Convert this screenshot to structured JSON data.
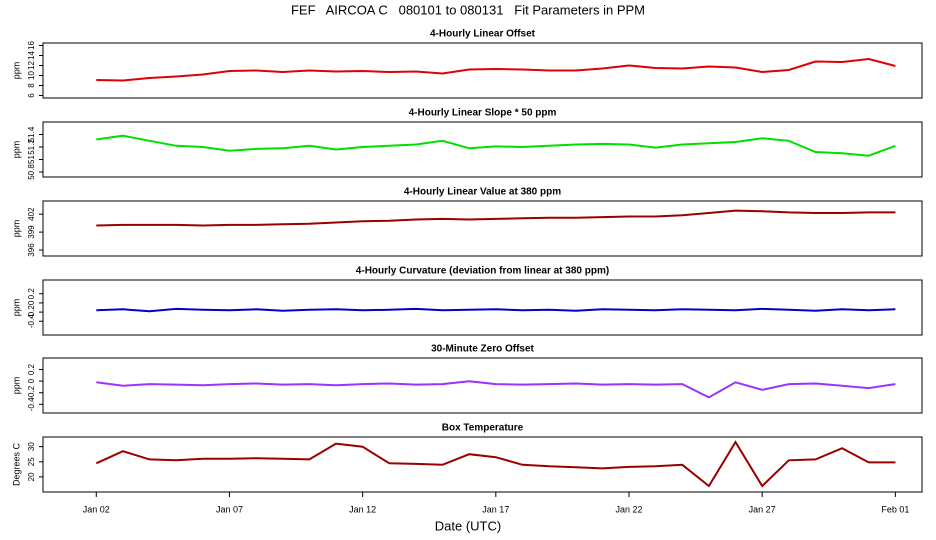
{
  "title": "FEF   AIRCOA C   080101 to 080131   Fit Parameters in PPM",
  "chart_data": [
    {
      "type": "line",
      "title": "4-Hourly Linear Offset",
      "ylabel": "ppm",
      "color": "#e00000",
      "x": [
        "Jan 02",
        "Jan 03",
        "Jan 04",
        "Jan 05",
        "Jan 06",
        "Jan 07",
        "Jan 08",
        "Jan 09",
        "Jan 10",
        "Jan 11",
        "Jan 12",
        "Jan 13",
        "Jan 14",
        "Jan 15",
        "Jan 16",
        "Jan 17",
        "Jan 18",
        "Jan 19",
        "Jan 20",
        "Jan 21",
        "Jan 22",
        "Jan 23",
        "Jan 24",
        "Jan 25",
        "Jan 26",
        "Jan 27",
        "Jan 28",
        "Jan 29",
        "Jan 30",
        "Jan 31",
        "Feb 01"
      ],
      "xlim": [
        "Dec 31",
        "Feb 02"
      ],
      "values": [
        9.1,
        9.0,
        9.5,
        9.8,
        10.2,
        10.9,
        11.0,
        10.7,
        11.0,
        10.8,
        10.9,
        10.7,
        10.8,
        10.4,
        11.2,
        11.3,
        11.2,
        11.0,
        11.0,
        11.4,
        12.0,
        11.5,
        11.4,
        11.8,
        11.6,
        10.7,
        11.1,
        12.8,
        12.7,
        13.3,
        11.9
      ],
      "ylim": [
        5.5,
        16.5
      ],
      "yticks": [
        6,
        8,
        10,
        12,
        14,
        16
      ]
    },
    {
      "type": "line",
      "title": "4-Hourly Linear Slope * 50 ppm",
      "ylabel": "ppm",
      "color": "#00e000",
      "x": [
        "Jan 02",
        "Jan 03",
        "Jan 04",
        "Jan 05",
        "Jan 06",
        "Jan 07",
        "Jan 08",
        "Jan 09",
        "Jan 10",
        "Jan 11",
        "Jan 12",
        "Jan 13",
        "Jan 14",
        "Jan 15",
        "Jan 16",
        "Jan 17",
        "Jan 18",
        "Jan 19",
        "Jan 20",
        "Jan 21",
        "Jan 22",
        "Jan 23",
        "Jan 24",
        "Jan 25",
        "Jan 26",
        "Jan 27",
        "Jan 28",
        "Jan 29",
        "Jan 30",
        "Jan 31",
        "Feb 01"
      ],
      "xlim": [
        "Dec 31",
        "Feb 02"
      ],
      "values": [
        51.32,
        51.38,
        51.3,
        51.22,
        51.2,
        51.14,
        51.17,
        51.18,
        51.22,
        51.16,
        51.2,
        51.22,
        51.24,
        51.3,
        51.18,
        51.21,
        51.2,
        51.22,
        51.24,
        51.25,
        51.24,
        51.19,
        51.24,
        51.26,
        51.28,
        51.34,
        51.3,
        51.12,
        51.1,
        51.06,
        51.22
      ],
      "ylim": [
        50.72,
        51.6
      ],
      "yticks": [
        {
          "value": 50.8,
          "label": "50.8"
        },
        {
          "value": 51.0,
          "label": "51"
        },
        51.2,
        51.4
      ]
    },
    {
      "type": "line",
      "title": "4-Hourly Linear Value at 380 ppm",
      "ylabel": "ppm",
      "color": "#990000",
      "x": [
        "Jan 02",
        "Jan 03",
        "Jan 04",
        "Jan 05",
        "Jan 06",
        "Jan 07",
        "Jan 08",
        "Jan 09",
        "Jan 10",
        "Jan 11",
        "Jan 12",
        "Jan 13",
        "Jan 14",
        "Jan 15",
        "Jan 16",
        "Jan 17",
        "Jan 18",
        "Jan 19",
        "Jan 20",
        "Jan 21",
        "Jan 22",
        "Jan 23",
        "Jan 24",
        "Jan 25",
        "Jan 26",
        "Jan 27",
        "Jan 28",
        "Jan 29",
        "Jan 30",
        "Jan 31",
        "Feb 01"
      ],
      "xlim": [
        "Dec 31",
        "Feb 02"
      ],
      "values": [
        400.1,
        400.2,
        400.2,
        400.2,
        400.1,
        400.2,
        400.2,
        400.3,
        400.4,
        400.6,
        400.8,
        400.9,
        401.1,
        401.2,
        401.1,
        401.2,
        401.3,
        401.4,
        401.4,
        401.5,
        401.6,
        401.6,
        401.8,
        402.2,
        402.6,
        402.5,
        402.3,
        402.2,
        402.2,
        402.3,
        402.3
      ],
      "ylim": [
        395,
        404.2
      ],
      "yticks": [
        396,
        399,
        402
      ]
    },
    {
      "type": "line",
      "title": "4-Hourly Curvature (deviation from linear at 380 ppm)",
      "ylabel": "ppm",
      "color": "#0000cc",
      "x": [
        "Jan 02",
        "Jan 03",
        "Jan 04",
        "Jan 05",
        "Jan 06",
        "Jan 07",
        "Jan 08",
        "Jan 09",
        "Jan 10",
        "Jan 11",
        "Jan 12",
        "Jan 13",
        "Jan 14",
        "Jan 15",
        "Jan 16",
        "Jan 17",
        "Jan 18",
        "Jan 19",
        "Jan 20",
        "Jan 21",
        "Jan 22",
        "Jan 23",
        "Jan 24",
        "Jan 25",
        "Jan 26",
        "Jan 27",
        "Jan 28",
        "Jan 29",
        "Jan 30",
        "Jan 31",
        "Feb 01"
      ],
      "xlim": [
        "Dec 31",
        "Feb 02"
      ],
      "values": [
        -0.16,
        -0.14,
        -0.18,
        -0.13,
        -0.15,
        -0.16,
        -0.14,
        -0.17,
        -0.15,
        -0.14,
        -0.16,
        -0.15,
        -0.13,
        -0.16,
        -0.15,
        -0.14,
        -0.16,
        -0.15,
        -0.17,
        -0.14,
        -0.15,
        -0.16,
        -0.14,
        -0.15,
        -0.16,
        -0.13,
        -0.15,
        -0.17,
        -0.14,
        -0.16,
        -0.14
      ],
      "ylim": [
        -0.7,
        0.5
      ],
      "yticks": [
        -0.4,
        -0.2,
        0,
        0.2
      ]
    },
    {
      "type": "line",
      "title": "30-Minute Zero Offset",
      "ylabel": "ppm",
      "color": "#9933ff",
      "x": [
        "Jan 02",
        "Jan 03",
        "Jan 04",
        "Jan 05",
        "Jan 06",
        "Jan 07",
        "Jan 08",
        "Jan 09",
        "Jan 10",
        "Jan 11",
        "Jan 12",
        "Jan 13",
        "Jan 14",
        "Jan 15",
        "Jan 16",
        "Jan 17",
        "Jan 18",
        "Jan 19",
        "Jan 20",
        "Jan 21",
        "Jan 22",
        "Jan 23",
        "Jan 24",
        "Jan 25",
        "Jan 26",
        "Jan 27",
        "Jan 28",
        "Jan 29",
        "Jan 30",
        "Jan 31",
        "Feb 01"
      ],
      "xlim": [
        "Dec 31",
        "Feb 02"
      ],
      "values": [
        -0.02,
        -0.08,
        -0.05,
        -0.06,
        -0.07,
        -0.05,
        -0.04,
        -0.06,
        -0.05,
        -0.07,
        -0.05,
        -0.04,
        -0.06,
        -0.05,
        0.0,
        -0.05,
        -0.06,
        -0.05,
        -0.04,
        -0.06,
        -0.05,
        -0.06,
        -0.05,
        -0.28,
        -0.02,
        -0.15,
        -0.05,
        -0.04,
        -0.08,
        -0.12,
        -0.05
      ],
      "ylim": [
        -0.55,
        0.4
      ],
      "yticks": [
        -0.4,
        -0.2,
        0,
        0.2
      ]
    },
    {
      "type": "line",
      "title": "Box Temperature",
      "ylabel": "Degrees C",
      "xlabel": "Date (UTC)",
      "color": "#990000",
      "x": [
        "Jan 02",
        "Jan 03",
        "Jan 04",
        "Jan 05",
        "Jan 06",
        "Jan 07",
        "Jan 08",
        "Jan 09",
        "Jan 10",
        "Jan 11",
        "Jan 12",
        "Jan 13",
        "Jan 14",
        "Jan 15",
        "Jan 16",
        "Jan 17",
        "Jan 18",
        "Jan 19",
        "Jan 20",
        "Jan 21",
        "Jan 22",
        "Jan 23",
        "Jan 24",
        "Jan 25",
        "Jan 26",
        "Jan 27",
        "Jan 28",
        "Jan 29",
        "Jan 30",
        "Jan 31",
        "Feb 01"
      ],
      "xlim": [
        "Dec 31",
        "Feb 02"
      ],
      "values": [
        24.5,
        28.5,
        25.8,
        25.5,
        26.0,
        26.0,
        26.2,
        26.0,
        25.8,
        31.0,
        30.0,
        24.5,
        24.3,
        24.0,
        27.5,
        26.5,
        24.0,
        23.5,
        23.2,
        22.8,
        23.3,
        23.5,
        24.0,
        17.0,
        31.5,
        17.0,
        25.5,
        25.8,
        29.5,
        24.8,
        24.8
      ],
      "ylim": [
        15,
        33.2
      ],
      "yticks": [
        20,
        25,
        30
      ],
      "xticks": [
        "Jan 02",
        "Jan 07",
        "Jan 12",
        "Jan 17",
        "Jan 22",
        "Jan 27",
        "Feb 01"
      ]
    }
  ]
}
